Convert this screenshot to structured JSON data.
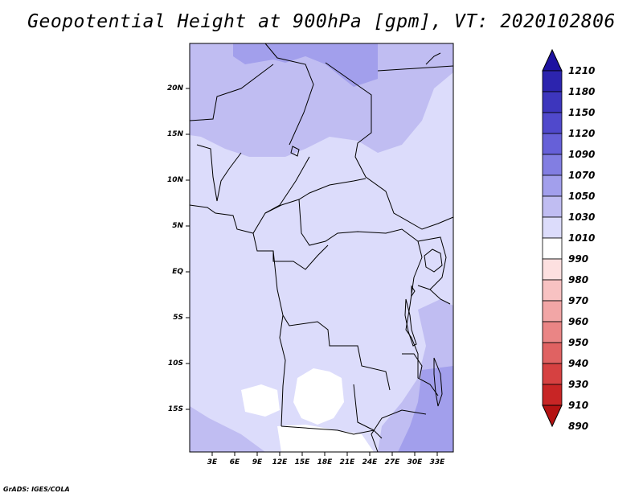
{
  "title": "Geopotential Height at 900hPa [gpm], VT: 2020102806",
  "credit": "GrADS: IGES/COLA",
  "lat_labels": [
    "20N",
    "15N",
    "10N",
    "5N",
    "EQ",
    "5S",
    "10S",
    "15S"
  ],
  "lon_labels": [
    "3E",
    "6E",
    "9E",
    "12E",
    "15E",
    "18E",
    "21E",
    "24E",
    "27E",
    "30E",
    "33E"
  ],
  "colorbar": {
    "levels": [
      "1210",
      "1180",
      "1150",
      "1120",
      "1090",
      "1070",
      "1050",
      "1030",
      "1010",
      "990",
      "980",
      "970",
      "960",
      "950",
      "940",
      "930",
      "910",
      "890"
    ],
    "colors": [
      "#1e12a0",
      "#2c24ae",
      "#3d36bd",
      "#5049cc",
      "#6660d8",
      "#827ee2",
      "#a29fec",
      "#c0bdf2",
      "#dcdcfb",
      "#ffffff",
      "#fde0e0",
      "#f8c2c2",
      "#f2a6a6",
      "#ea8585",
      "#e06262",
      "#d64141",
      "#c82525",
      "#b41212"
    ]
  },
  "colors": {
    "land_main": "#dcdcfb",
    "land_mid": "#c0bdf2",
    "land_high": "#a29fec",
    "border": "#000000"
  }
}
